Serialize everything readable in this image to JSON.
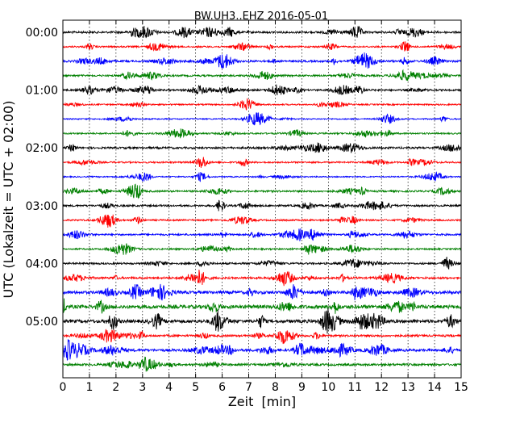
{
  "chart_data": {
    "type": "line",
    "title": "BW.UH3..EHZ 2016-05-01",
    "xlabel": "Zeit  [min]",
    "ylabel": "UTC (Lokalzeit = UTC + 02:00)",
    "xlim": [
      0,
      15
    ],
    "x_ticks": [
      "0",
      "1",
      "2",
      "3",
      "4",
      "5",
      "6",
      "7",
      "8",
      "9",
      "10",
      "11",
      "12",
      "13",
      "14",
      "15"
    ],
    "y_ticks": [
      "00:00",
      "01:00",
      "02:00",
      "03:00",
      "04:00",
      "05:00"
    ],
    "grid": "vertical dotted lines at each minute",
    "colors": [
      "#000000",
      "#ff0000",
      "#0000ff",
      "#008000"
    ],
    "traces": [
      {
        "start": "00:00",
        "color": "#000000",
        "amp": 1.0
      },
      {
        "start": "00:15",
        "color": "#ff0000",
        "amp": 0.8
      },
      {
        "start": "00:30",
        "color": "#0000ff",
        "amp": 1.0
      },
      {
        "start": "00:45",
        "color": "#008000",
        "amp": 0.9
      },
      {
        "start": "01:00",
        "color": "#000000",
        "amp": 0.9
      },
      {
        "start": "01:15",
        "color": "#ff0000",
        "amp": 0.7
      },
      {
        "start": "01:30",
        "color": "#0000ff",
        "amp": 0.6
      },
      {
        "start": "01:45",
        "color": "#008000",
        "amp": 0.8
      },
      {
        "start": "02:00",
        "color": "#000000",
        "amp": 1.0
      },
      {
        "start": "02:15",
        "color": "#ff0000",
        "amp": 0.8
      },
      {
        "start": "02:30",
        "color": "#0000ff",
        "amp": 0.6
      },
      {
        "start": "02:45",
        "color": "#008000",
        "amp": 0.9
      },
      {
        "start": "03:00",
        "color": "#000000",
        "amp": 0.9
      },
      {
        "start": "03:15",
        "color": "#ff0000",
        "amp": 0.8
      },
      {
        "start": "03:30",
        "color": "#0000ff",
        "amp": 0.9
      },
      {
        "start": "03:45",
        "color": "#008000",
        "amp": 0.8
      },
      {
        "start": "04:00",
        "color": "#000000",
        "amp": 0.9
      },
      {
        "start": "04:15",
        "color": "#ff0000",
        "amp": 1.0
      },
      {
        "start": "04:30",
        "color": "#0000ff",
        "amp": 1.5
      },
      {
        "start": "04:45",
        "color": "#008000",
        "amp": 1.8
      },
      {
        "start": "05:00",
        "color": "#000000",
        "amp": 1.6
      },
      {
        "start": "05:15",
        "color": "#ff0000",
        "amp": 1.0
      },
      {
        "start": "05:30",
        "color": "#0000ff",
        "amp": 1.3
      },
      {
        "start": "05:45",
        "color": "#008000",
        "amp": 1.1
      }
    ]
  }
}
